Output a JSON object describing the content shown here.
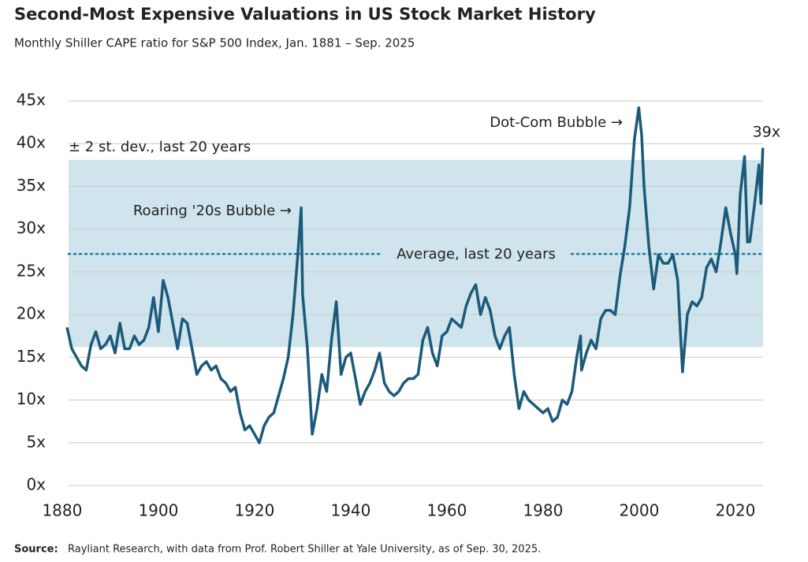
{
  "chart_data": {
    "type": "line",
    "title": "Second-Most Expensive Valuations in US Stock Market History",
    "subtitle": "Monthly Shiller CAPE ratio for S&P 500 Index, Jan. 1881 – Sep. 2025",
    "source_label": "Source:",
    "source": "Rayliant Research, with data from Prof. Robert Shiller at Yale University, as of Sep. 30, 2025.",
    "annotations": {
      "dotcom": "Dot-Com Bubble →",
      "twenties": "Roaring '20s Bubble →",
      "band": "± 2 st. dev., last 20 years",
      "average": "Average, last 20 years",
      "last": "39x"
    },
    "band": [
      16.2,
      38.1
    ],
    "average": 27.1,
    "color": "#1b5a7a",
    "band_color": "#cfe4ec",
    "average_color": "#1f7ba6",
    "xlim": [
      1881,
      2025.75
    ],
    "ylim": [
      0,
      45
    ],
    "xticks": [
      1880,
      1900,
      1920,
      1940,
      1960,
      1980,
      2000,
      2020
    ],
    "yticks": [
      {
        "value": 0,
        "label": "0x"
      },
      {
        "value": 5,
        "label": "5x"
      },
      {
        "value": 10,
        "label": "10x"
      },
      {
        "value": 15,
        "label": "15x"
      },
      {
        "value": 20,
        "label": "20x"
      },
      {
        "value": 25,
        "label": "25x"
      },
      {
        "value": 30,
        "label": "30x"
      },
      {
        "value": 35,
        "label": "35x"
      },
      {
        "value": 40,
        "label": "40x"
      },
      {
        "value": 45,
        "label": "45x"
      }
    ],
    "grid": true,
    "x": [
      1881,
      1882,
      1883,
      1884,
      1885,
      1886,
      1887,
      1888,
      1889,
      1890,
      1891,
      1892,
      1893,
      1894,
      1895,
      1896,
      1897,
      1898,
      1899,
      1900,
      1901,
      1902,
      1903,
      1904,
      1905,
      1906,
      1907,
      1908,
      1909,
      1910,
      1911,
      1912,
      1913,
      1914,
      1915,
      1916,
      1917,
      1918,
      1919,
      1920,
      1921,
      1922,
      1923,
      1924,
      1925,
      1926,
      1927,
      1928,
      1929,
      1929.7,
      1930,
      1931,
      1932,
      1933,
      1934,
      1935,
      1936,
      1937,
      1938,
      1939,
      1940,
      1941,
      1942,
      1943,
      1944,
      1945,
      1946,
      1947,
      1948,
      1949,
      1950,
      1951,
      1952,
      1953,
      1954,
      1955,
      1956,
      1957,
      1958,
      1959,
      1960,
      1961,
      1962,
      1963,
      1964,
      1965,
      1966,
      1967,
      1968,
      1969,
      1970,
      1971,
      1972,
      1973,
      1974,
      1975,
      1976,
      1977,
      1978,
      1979,
      1980,
      1981,
      1982,
      1983,
      1984,
      1985,
      1986,
      1987,
      1987.8,
      1988,
      1989,
      1990,
      1991,
      1992,
      1993,
      1994,
      1995,
      1996,
      1997,
      1998,
      1999,
      1999.9,
      2000.5,
      2001,
      2002,
      2003,
      2004,
      2005,
      2006,
      2007,
      2008,
      2009,
      2010,
      2011,
      2012,
      2013,
      2014,
      2015,
      2016,
      2017,
      2018,
      2019,
      2020,
      2020.3,
      2021,
      2021.9,
      2022.5,
      2023,
      2024,
      2024.9,
      2025.3,
      2025.7
    ],
    "values": [
      18.5,
      16,
      15,
      14,
      13.5,
      16.5,
      18,
      16,
      16.5,
      17.5,
      15.5,
      19,
      16,
      16,
      17.5,
      16.5,
      17,
      18.5,
      22,
      18,
      24,
      22,
      19,
      16,
      19.5,
      19,
      16,
      13,
      14,
      14.5,
      13.5,
      14,
      12.5,
      12,
      11,
      11.5,
      8.5,
      6.5,
      7,
      6,
      5,
      7,
      8,
      8.5,
      10.5,
      12.5,
      15,
      20,
      27,
      32.5,
      22.3,
      16,
      6,
      9,
      13,
      11,
      17,
      21.5,
      13,
      15,
      15.5,
      12.5,
      9.5,
      11,
      12,
      13.5,
      15.5,
      12,
      11,
      10.5,
      11,
      12,
      12.5,
      12.5,
      13,
      17,
      18.5,
      15.5,
      14,
      17.5,
      18,
      19.5,
      19,
      18.5,
      21,
      22.5,
      23.5,
      20,
      22,
      20.5,
      17.5,
      16,
      17.5,
      18.5,
      13,
      9,
      11,
      10,
      9.5,
      9,
      8.5,
      9,
      7.5,
      8,
      10,
      9.5,
      11,
      15,
      17.5,
      13.5,
      15.5,
      17,
      16,
      19.5,
      20.5,
      20.5,
      20,
      24.5,
      28,
      32.5,
      40.5,
      44.2,
      41,
      35,
      28,
      23,
      27,
      26,
      26,
      27,
      24,
      13.3,
      20,
      21.5,
      21,
      22,
      25.5,
      26.5,
      25,
      28.5,
      32.5,
      29.5,
      27,
      24.8,
      34,
      38.5,
      28.5,
      28.5,
      33,
      37.5,
      33,
      39.5
    ]
  }
}
